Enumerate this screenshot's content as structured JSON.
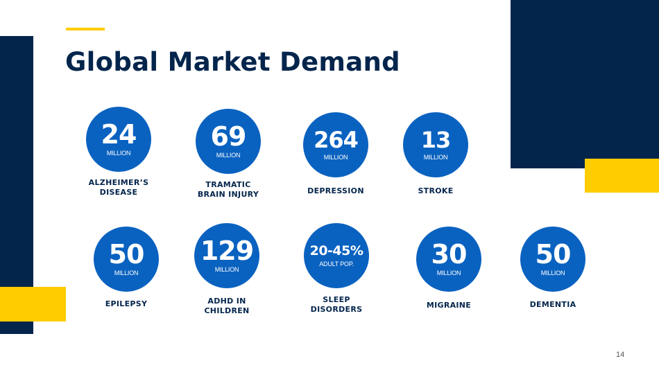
{
  "title": "Global Market Demand",
  "page_number": "14",
  "colors": {
    "navy": "#03254c",
    "yellow": "#ffcc00",
    "circle_blue": "#0a62c0"
  },
  "stats": [
    {
      "value": "24",
      "unit": "MILLION",
      "label": "ALZHEIMER’S\nDISEASE"
    },
    {
      "value": "69",
      "unit": "MILLION",
      "label": "TRAMATIC\nBRAIN INJURY"
    },
    {
      "value": "264",
      "unit": "MILLION",
      "label": "DEPRESSION"
    },
    {
      "value": "13",
      "unit": "MILLION",
      "label": "STROKE"
    },
    {
      "value": "50",
      "unit": "MILLION",
      "label": "EPILEPSY"
    },
    {
      "value": "129",
      "unit": "MILLION",
      "label": "ADHD IN\nCHILDREN"
    },
    {
      "value": "20-45%",
      "unit": "ADULT POP.",
      "label": "SLEEP\nDISORDERS"
    },
    {
      "value": "30",
      "unit": "MILLION",
      "label": "MIGRAINE"
    },
    {
      "value": "50",
      "unit": "MILLION",
      "label": "DEMENTIA"
    }
  ]
}
